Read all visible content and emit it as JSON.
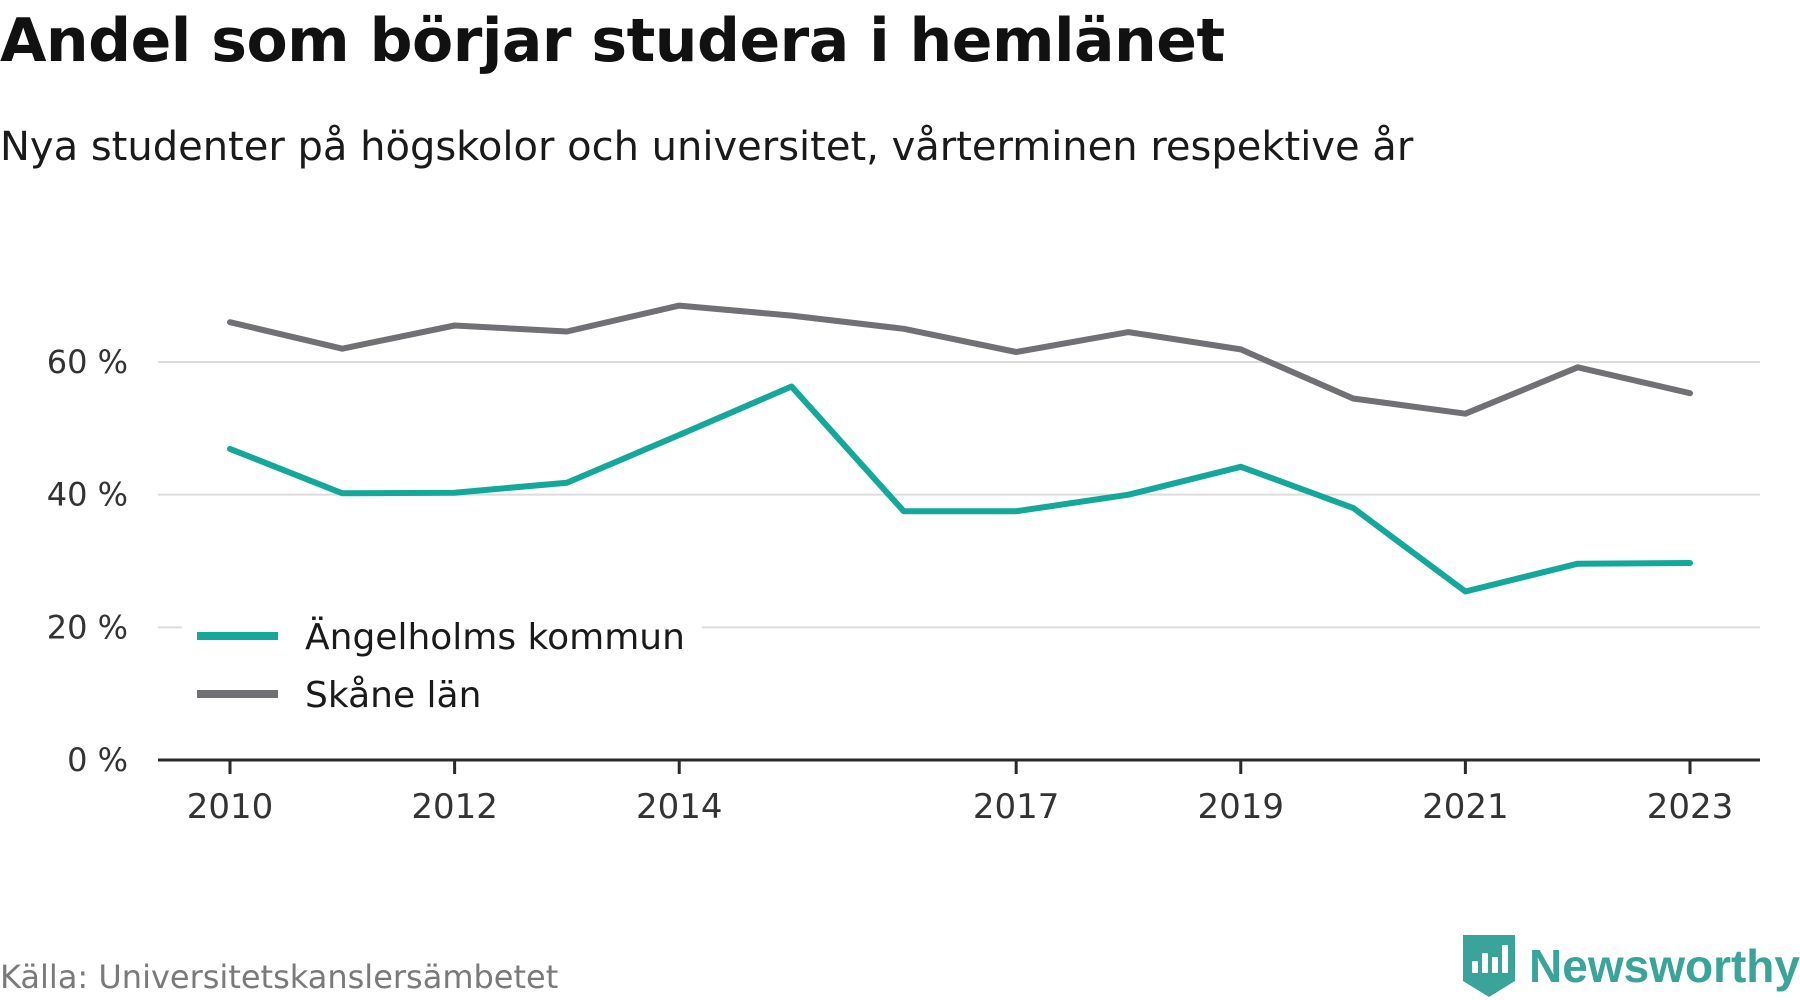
{
  "header": {
    "title": "Andel som börjar studera i hemlänet",
    "subtitle": "Nya studenter på högskolor och universitet, vårterminen respektive år"
  },
  "footer": {
    "source": "Källa: Universitetskanslersämbetet",
    "brand": "Newsworthy",
    "brand_icon": "bar-chart-bubble-icon",
    "brand_color": "#3aa39a"
  },
  "chart_data": {
    "type": "line",
    "x": [
      2010,
      2011,
      2012,
      2013,
      2014,
      2015,
      2016,
      2017,
      2018,
      2019,
      2020,
      2021,
      2022,
      2023
    ],
    "x_tick_labels": [
      "2010",
      "2012",
      "2014",
      "2017",
      "2019",
      "2021",
      "2023"
    ],
    "y_tick_values": [
      0,
      20,
      40,
      60
    ],
    "y_tick_labels": [
      "0 %",
      "20 %",
      "40 %",
      "60 %"
    ],
    "ylim": [
      0,
      70
    ],
    "grid": "horizontal",
    "legend_position": "lower-left",
    "series": [
      {
        "name": "Ängelholms kommun",
        "color": "#14a89b",
        "values": [
          46.9,
          40.2,
          40.3,
          41.8,
          49.0,
          56.3,
          37.5,
          37.5,
          40.0,
          44.2,
          38.0,
          25.4,
          29.6,
          29.7
        ]
      },
      {
        "name": "Skåne län",
        "color": "#717075",
        "values": [
          66.0,
          62.0,
          65.5,
          64.6,
          68.5,
          67.0,
          65.0,
          61.5,
          64.5,
          61.9,
          54.5,
          52.2,
          59.2,
          55.3
        ]
      }
    ]
  }
}
